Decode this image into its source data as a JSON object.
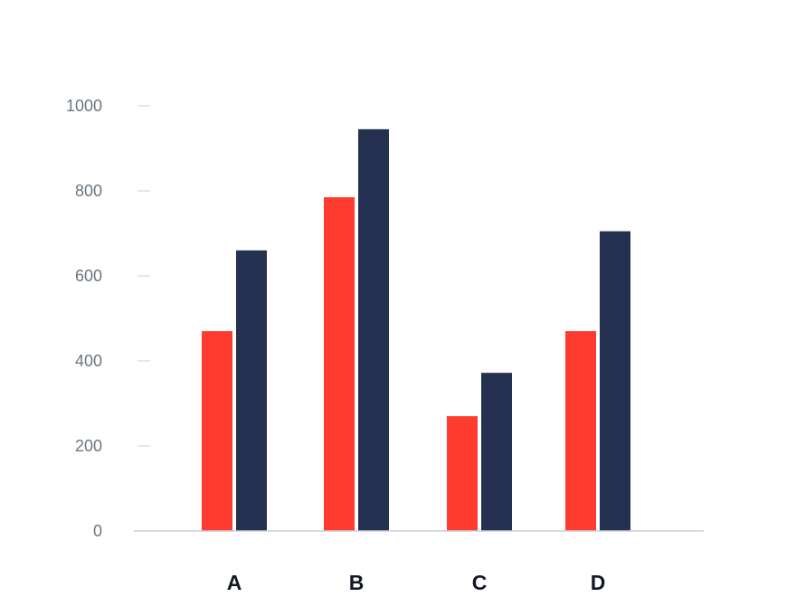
{
  "chart_data": {
    "type": "bar",
    "title": "",
    "xlabel": "",
    "ylabel": "",
    "categories": [
      "A",
      "B",
      "C",
      "D"
    ],
    "series": [
      {
        "values": [
          470,
          785,
          270,
          470
        ],
        "color": "#ff3b30"
      },
      {
        "values": [
          660,
          945,
          372,
          705
        ],
        "color": "#253150"
      }
    ],
    "ylim": [
      0,
      1000
    ],
    "yticks": [
      0,
      200,
      400,
      600,
      800,
      1000
    ],
    "ytick_labels": [
      "0",
      "200",
      "400",
      "600",
      "800",
      "1000"
    ],
    "grid": false,
    "legend": "none"
  }
}
